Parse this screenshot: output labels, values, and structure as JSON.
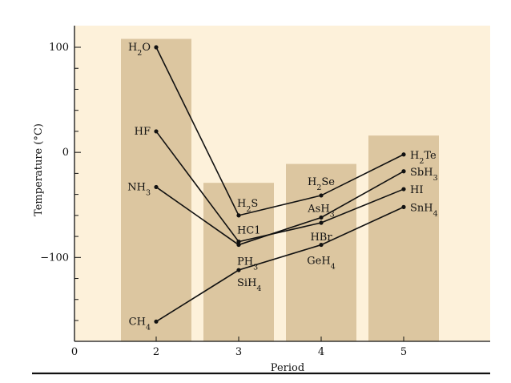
{
  "chart_data": {
    "type": "line",
    "title": "",
    "xlabel": "Period",
    "ylabel": "Temperature (°C)",
    "xlim": [
      0,
      6
    ],
    "ylim": [
      -180,
      120
    ],
    "x": [
      2,
      3,
      4,
      5
    ],
    "x_ticks": [
      0,
      2,
      3,
      4,
      5
    ],
    "y_ticks_labeled": [
      100,
      0,
      -100
    ],
    "y_ticks_minor_step": 20,
    "grid": false,
    "background_color": "#fdf1da",
    "bar_color": "#dcc6a0",
    "line_color": "#111111",
    "background_bars": [
      {
        "x": 2,
        "value": 108
      },
      {
        "x": 3,
        "value": -29
      },
      {
        "x": 4,
        "value": -11
      },
      {
        "x": 5,
        "value": 16
      }
    ],
    "series": [
      {
        "name": "H2O/H2S/H2Se/H2Te",
        "values": [
          100,
          -60,
          -41,
          -2
        ]
      },
      {
        "name": "HF/HCl/HBr/HI",
        "values": [
          20,
          -85,
          -67,
          -35
        ]
      },
      {
        "name": "NH3/PH3/AsH3/SbH3",
        "values": [
          -33,
          -88,
          -62,
          -18
        ]
      },
      {
        "name": "CH4/SiH4/GeH4/SnH4",
        "values": [
          -161,
          -112,
          -88,
          -52
        ]
      }
    ],
    "point_labels": [
      {
        "x": 2,
        "y": 100,
        "base": "H",
        "sub": "2",
        "tail": "O",
        "anchor": "end",
        "dx": -7,
        "dy": 4
      },
      {
        "x": 2,
        "y": 20,
        "base": "HF",
        "sub": "",
        "tail": "",
        "anchor": "end",
        "dx": -7,
        "dy": 4
      },
      {
        "x": 2,
        "y": -33,
        "base": "NH",
        "sub": "3",
        "tail": "",
        "anchor": "end",
        "dx": -7,
        "dy": 4
      },
      {
        "x": 2,
        "y": -161,
        "base": "CH",
        "sub": "4",
        "tail": "",
        "anchor": "end",
        "dx": -7,
        "dy": 4
      },
      {
        "x": 3,
        "y": -60,
        "base": "H",
        "sub": "2",
        "tail": "S",
        "anchor": "start",
        "dx": -2,
        "dy": -11
      },
      {
        "x": 3,
        "y": -85,
        "base": "HC1",
        "sub": "",
        "tail": "",
        "anchor": "start",
        "dx": -2,
        "dy": -10
      },
      {
        "x": 3,
        "y": -88,
        "base": "PH",
        "sub": "3",
        "tail": "",
        "anchor": "start",
        "dx": -2,
        "dy": 25
      },
      {
        "x": 3,
        "y": -112,
        "base": "SiH",
        "sub": "4",
        "tail": "",
        "anchor": "start",
        "dx": -2,
        "dy": 20
      },
      {
        "x": 4,
        "y": -41,
        "base": "H",
        "sub": "2",
        "tail": "Se",
        "anchor": "middle",
        "dx": 0,
        "dy": -13
      },
      {
        "x": 4,
        "y": -62,
        "base": "AsH",
        "sub": "3",
        "tail": "",
        "anchor": "middle",
        "dx": 0,
        "dy": -7
      },
      {
        "x": 4,
        "y": -67,
        "base": "HBr",
        "sub": "",
        "tail": "",
        "anchor": "middle",
        "dx": 0,
        "dy": 22
      },
      {
        "x": 4,
        "y": -88,
        "base": "GeH",
        "sub": "4",
        "tail": "",
        "anchor": "middle",
        "dx": 0,
        "dy": 24
      },
      {
        "x": 5,
        "y": -2,
        "base": "H",
        "sub": "2",
        "tail": "Te",
        "anchor": "start",
        "dx": 8,
        "dy": 5
      },
      {
        "x": 5,
        "y": -18,
        "base": "SbH",
        "sub": "3",
        "tail": "",
        "anchor": "start",
        "dx": 8,
        "dy": 5
      },
      {
        "x": 5,
        "y": -35,
        "base": "HI",
        "sub": "",
        "tail": "",
        "anchor": "start",
        "dx": 8,
        "dy": 5
      },
      {
        "x": 5,
        "y": -52,
        "base": "SnH",
        "sub": "4",
        "tail": "",
        "anchor": "start",
        "dx": 8,
        "dy": 5
      }
    ]
  }
}
